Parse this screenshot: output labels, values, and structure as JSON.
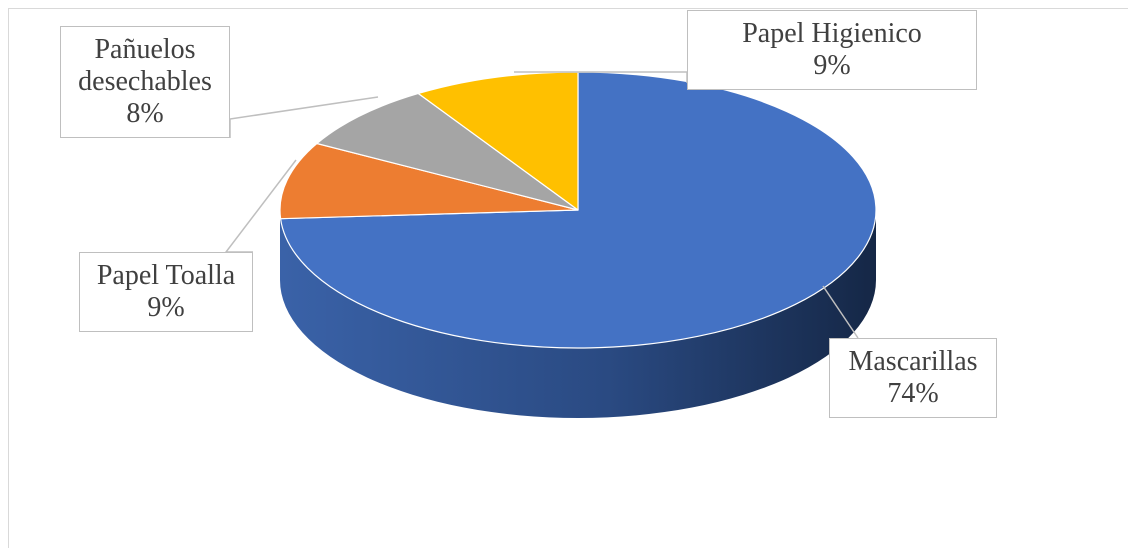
{
  "chart_data": {
    "type": "pie",
    "style": "3d",
    "slices": [
      {
        "label": "Mascarillas",
        "value": 74,
        "pct_label": "74%",
        "color": "#4472c4"
      },
      {
        "label": "Papel Toalla",
        "value": 9,
        "pct_label": "9%",
        "color": "#ed7d31"
      },
      {
        "label": "Pañuelos desechables",
        "value": 8,
        "pct_label": "8%",
        "color": "#a5a5a5"
      },
      {
        "label": "Papel Higienico",
        "value": 9,
        "pct_label": "9%",
        "color": "#ffc000"
      }
    ],
    "title": "",
    "legend": "none"
  },
  "labels": {
    "mascarillas": {
      "name": "Mascarillas",
      "pct": "74%"
    },
    "toalla": {
      "name": "Papel Toalla",
      "pct": "9%"
    },
    "panuelos": {
      "line1": "Pañuelos",
      "line2": "desechables",
      "pct": "8%"
    },
    "higienico": {
      "name": "Papel Higienico",
      "pct": "9%"
    }
  }
}
